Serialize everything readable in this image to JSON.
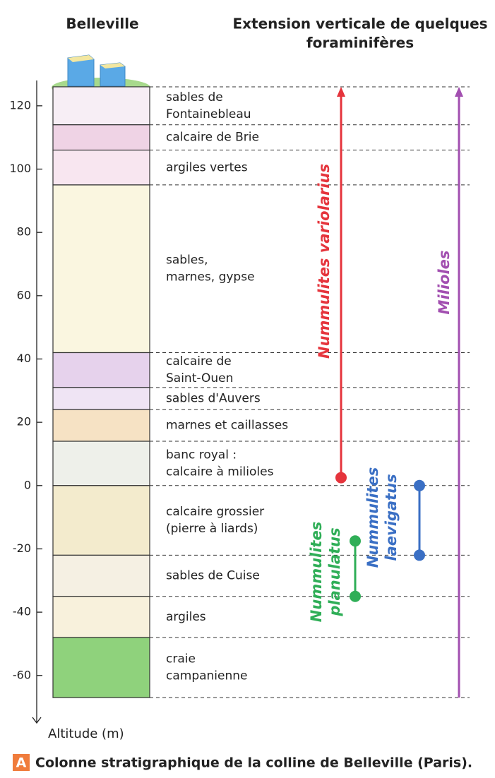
{
  "column": {
    "title": "Belleville",
    "axis_label": "Altitude (m)",
    "ylim": [
      -75,
      128
    ],
    "yticks": [
      120,
      100,
      80,
      60,
      40,
      20,
      0,
      -20,
      -40,
      -60
    ],
    "layers": [
      {
        "label": [
          "sables de",
          "Fontainebleau"
        ],
        "top": 126,
        "bottom": 114,
        "color": "#f7eef5"
      },
      {
        "label": [
          "calcaire de Brie"
        ],
        "top": 114,
        "bottom": 106,
        "color": "#efd3e5"
      },
      {
        "label": [
          "argiles vertes"
        ],
        "top": 106,
        "bottom": 95,
        "color": "#f8e6f0"
      },
      {
        "label": [
          "sables,",
          "marnes, gypse"
        ],
        "top": 95,
        "bottom": 42,
        "color": "#faf6e0"
      },
      {
        "label": [
          "calcaire de",
          "Saint-Ouen"
        ],
        "top": 42,
        "bottom": 31,
        "color": "#e6d2ec"
      },
      {
        "label": [
          "sables d'Auvers"
        ],
        "top": 31,
        "bottom": 24,
        "color": "#efe4f4"
      },
      {
        "label": [
          "marnes et caillasses"
        ],
        "top": 24,
        "bottom": 14,
        "color": "#f6e2c4"
      },
      {
        "label": [
          "banc royal :",
          "calcaire à milioles"
        ],
        "top": 14,
        "bottom": 0,
        "color": "#eef0ea"
      },
      {
        "label": [
          "calcaire grossier",
          "(pierre à liards)"
        ],
        "top": 0,
        "bottom": -22,
        "color": "#f3ebcd"
      },
      {
        "label": [
          "sables de Cuise"
        ],
        "top": -22,
        "bottom": -35,
        "color": "#f5f0e3"
      },
      {
        "label": [
          "argiles"
        ],
        "top": -35,
        "bottom": -48,
        "color": "#f8f1dc"
      },
      {
        "label": [
          "craie",
          "campanienne"
        ],
        "top": -48,
        "bottom": -67,
        "color": "#8fd27c"
      }
    ]
  },
  "ranges": {
    "title": [
      "Extension verticale de quelques",
      "foraminifères"
    ],
    "species": [
      {
        "name": [
          "Nummulites variolarius"
        ],
        "top": 126,
        "bottom": 2.5,
        "color": "#e5343c"
      },
      {
        "name": [
          "Nummulites",
          "planulatus"
        ],
        "top": -17.5,
        "bottom": -35,
        "color": "#2fae57"
      },
      {
        "name": [
          "Nummulites",
          "laevigatus"
        ],
        "top": 0,
        "bottom": -22,
        "color": "#3a6fc4"
      },
      {
        "name": [
          "Milioles"
        ],
        "top": 126,
        "bottom": -67,
        "color": "#a24fb0"
      }
    ]
  },
  "caption": {
    "letter": "A",
    "text": "Colonne stratigraphique de la colline de Belleville (Paris)."
  }
}
